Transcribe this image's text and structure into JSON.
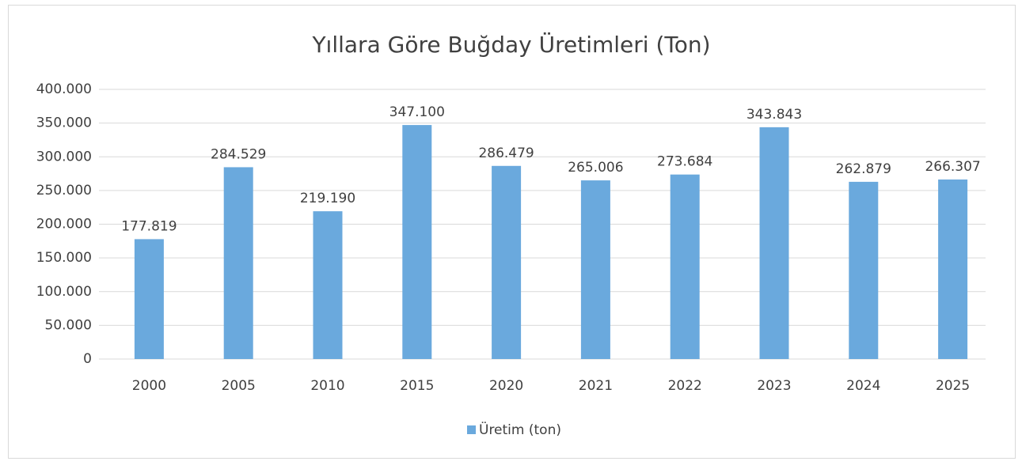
{
  "chart_data": {
    "type": "bar",
    "title": "Yıllara Göre Buğday Üretimleri (Ton)",
    "categories": [
      "2000",
      "2005",
      "2010",
      "2015",
      "2020",
      "2021",
      "2022",
      "2023",
      "2024",
      "2025"
    ],
    "series": [
      {
        "name": "Üretim (ton)",
        "color": "#6aa9dd",
        "values": [
          177819,
          284529,
          219190,
          347100,
          286479,
          265006,
          273684,
          343843,
          262879,
          266307
        ],
        "value_labels": [
          "177.819",
          "284.529",
          "219.190",
          "347.100",
          "286.479",
          "265.006",
          "273.684",
          "343.843",
          "262.879",
          "266.307"
        ]
      }
    ],
    "ylim": [
      0,
      400000
    ],
    "yticks": [
      0,
      {
        "value": 50000,
        "label": "50.000"
      },
      {
        "value": 100000,
        "label": "100.000"
      },
      {
        "value": 150000,
        "label": "150.000"
      },
      {
        "value": 200000,
        "label": "200.000"
      },
      {
        "value": 250000,
        "label": "250.000"
      },
      {
        "value": 300000,
        "label": "300.000"
      },
      {
        "value": 350000,
        "label": "350.000"
      },
      {
        "value": 400000,
        "label": "400.000"
      }
    ],
    "grid": true,
    "legend": "bottom"
  }
}
